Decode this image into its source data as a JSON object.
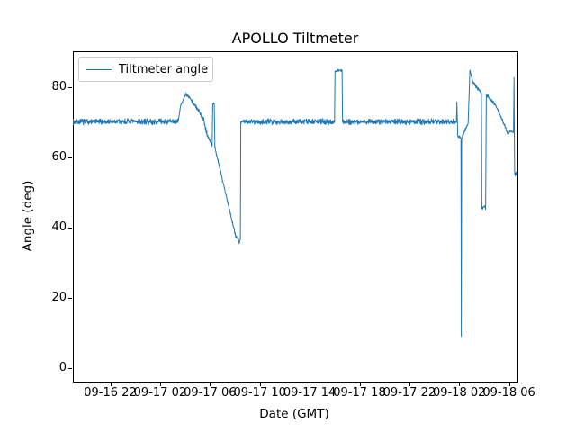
{
  "chart_data": {
    "type": "line",
    "title": "APOLLO Tiltmeter",
    "xlabel": "Date (GMT)",
    "ylabel": "Angle (deg)",
    "grid": false,
    "legend": {
      "position": "upper left",
      "entries": [
        "Tiltmeter angle"
      ]
    },
    "line_color": "#1f77b4",
    "y_ticks": [
      0,
      20,
      40,
      60,
      80
    ],
    "y_tick_labels": [
      "0",
      "20",
      "40",
      "60",
      "80"
    ],
    "ylim": [
      -3.85,
      90.3
    ],
    "x_tick_labels": [
      "09-16 22",
      "09-17 02",
      "09-17 06",
      "09-17 10",
      "09-17 14",
      "09-17 18",
      "09-17 22",
      "09-18 02",
      "09-18 06"
    ],
    "x_tick_hours": [
      3,
      7,
      11,
      15,
      19,
      23,
      27,
      31,
      35
    ],
    "xlim_hours": [
      0,
      35.74
    ],
    "x_unit": "hours after 09-16 19:00 GMT (plot left edge)",
    "series": [
      {
        "name": "Tiltmeter angle",
        "segment_format": [
          "h_start",
          "h_end",
          "value_start_deg",
          "value_end_deg",
          "noise_amplitude_deg"
        ],
        "segments": [
          [
            0.0,
            8.45,
            70.2,
            70.2,
            0.7
          ],
          [
            8.45,
            8.65,
            70.3,
            74.8,
            0.3
          ],
          [
            8.65,
            9.05,
            74.8,
            77.9,
            0.4
          ],
          [
            9.05,
            9.4,
            77.9,
            77.0,
            0.5
          ],
          [
            9.4,
            10.45,
            77.0,
            71.3,
            0.6
          ],
          [
            10.45,
            10.8,
            71.3,
            66.3,
            0.7
          ],
          [
            10.8,
            11.18,
            66.3,
            63.4,
            0.6
          ],
          [
            11.18,
            11.22,
            63.4,
            75.2,
            0
          ],
          [
            11.22,
            11.34,
            75.2,
            75.5,
            0.25
          ],
          [
            11.34,
            11.4,
            75.5,
            62.8,
            0
          ],
          [
            11.4,
            13.08,
            62.8,
            37.4,
            0.45
          ],
          [
            13.08,
            13.28,
            37.4,
            36.9,
            0.35
          ],
          [
            13.28,
            13.34,
            36.9,
            35.5,
            0
          ],
          [
            13.34,
            13.44,
            35.5,
            36.6,
            0.2
          ],
          [
            13.44,
            13.48,
            36.6,
            70.2,
            0
          ],
          [
            13.48,
            21.0,
            70.2,
            70.2,
            0.7
          ],
          [
            21.0,
            21.04,
            70.2,
            84.6,
            0
          ],
          [
            21.04,
            21.6,
            84.6,
            84.9,
            0.3
          ],
          [
            21.6,
            21.64,
            84.9,
            70.2,
            0
          ],
          [
            21.64,
            30.78,
            70.2,
            70.2,
            0.7
          ],
          [
            30.78,
            30.82,
            70.2,
            75.8,
            0
          ],
          [
            30.82,
            30.88,
            75.8,
            66.2,
            0
          ],
          [
            30.88,
            31.14,
            66.2,
            65.4,
            0.3
          ],
          [
            31.14,
            31.17,
            65.4,
            9.0,
            0
          ],
          [
            31.17,
            31.2,
            9.0,
            65.4,
            0
          ],
          [
            31.2,
            31.72,
            65.4,
            69.8,
            0.4
          ],
          [
            31.72,
            31.86,
            69.8,
            84.8,
            0.2
          ],
          [
            31.86,
            32.1,
            84.8,
            81.5,
            0.4
          ],
          [
            32.1,
            32.78,
            81.5,
            78.3,
            0.5
          ],
          [
            32.78,
            32.82,
            78.3,
            45.4,
            0
          ],
          [
            32.82,
            33.06,
            45.4,
            46.2,
            0.4
          ],
          [
            33.06,
            33.12,
            46.2,
            45.2,
            0
          ],
          [
            33.12,
            33.18,
            45.2,
            77.9,
            0
          ],
          [
            33.18,
            33.95,
            77.9,
            74.8,
            0.4
          ],
          [
            33.95,
            34.72,
            74.8,
            68.5,
            0.4
          ],
          [
            34.72,
            34.92,
            68.5,
            66.4,
            0.3
          ],
          [
            34.92,
            35.06,
            66.4,
            67.6,
            0.2
          ],
          [
            35.06,
            35.36,
            67.6,
            67.2,
            0.2
          ],
          [
            35.36,
            35.4,
            67.2,
            82.8,
            0
          ],
          [
            35.4,
            35.45,
            82.8,
            55.2,
            0
          ],
          [
            35.45,
            35.67,
            55.2,
            55.6,
            0.5
          ]
        ]
      }
    ]
  }
}
